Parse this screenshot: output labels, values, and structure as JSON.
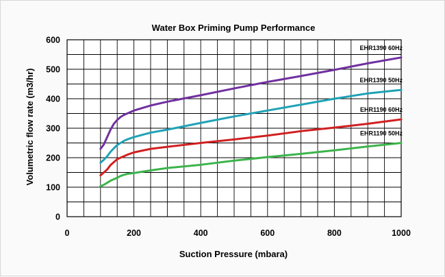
{
  "chart_data": {
    "type": "line",
    "title": "Water Box Priming Pump Performance",
    "xlabel": "Suction Pressure (mbara)",
    "ylabel": "Volumetric flow rate (m3/hr)",
    "xlim": [
      0,
      1000
    ],
    "ylim": [
      0,
      600
    ],
    "xticks": [
      0,
      200,
      400,
      600,
      800,
      1000
    ],
    "yticks": [
      0,
      100,
      200,
      300,
      400,
      500,
      600
    ],
    "grid": true,
    "legend": "inline labels at right end of each curve",
    "series": [
      {
        "name": "EHR1390 60Hz",
        "color": "#7030a0",
        "x": [
          100,
          110,
          120,
          130,
          140,
          150,
          160,
          170,
          180,
          200,
          250,
          300,
          400,
          500,
          600,
          700,
          800,
          900,
          1000
        ],
        "values": [
          230,
          245,
          270,
          295,
          315,
          328,
          338,
          345,
          350,
          360,
          377,
          390,
          412,
          435,
          457,
          477,
          498,
          520,
          540
        ]
      },
      {
        "name": "EHR1390 50Hz",
        "color": "#1fa2b6",
        "x": [
          100,
          110,
          120,
          130,
          140,
          150,
          160,
          170,
          180,
          200,
          250,
          300,
          400,
          500,
          600,
          700,
          800,
          900,
          1000
        ],
        "values": [
          183,
          193,
          205,
          220,
          232,
          243,
          250,
          257,
          262,
          270,
          285,
          295,
          318,
          340,
          360,
          380,
          400,
          418,
          430
        ]
      },
      {
        "name": "EHR1190 60Hz",
        "color": "#d02020",
        "x": [
          100,
          110,
          120,
          130,
          140,
          150,
          160,
          170,
          180,
          200,
          250,
          300,
          400,
          500,
          600,
          700,
          800,
          900,
          1000
        ],
        "values": [
          140,
          150,
          160,
          175,
          185,
          195,
          200,
          205,
          210,
          218,
          230,
          237,
          250,
          262,
          275,
          290,
          302,
          315,
          330
        ]
      },
      {
        "name": "EHR1190 50Hz",
        "color": "#3cb44b",
        "x": [
          100,
          110,
          120,
          130,
          140,
          150,
          160,
          170,
          180,
          200,
          250,
          300,
          400,
          500,
          600,
          700,
          800,
          900,
          1000
        ],
        "values": [
          103,
          108,
          115,
          122,
          127,
          132,
          138,
          142,
          145,
          148,
          157,
          165,
          176,
          190,
          202,
          213,
          225,
          238,
          250
        ]
      }
    ]
  }
}
